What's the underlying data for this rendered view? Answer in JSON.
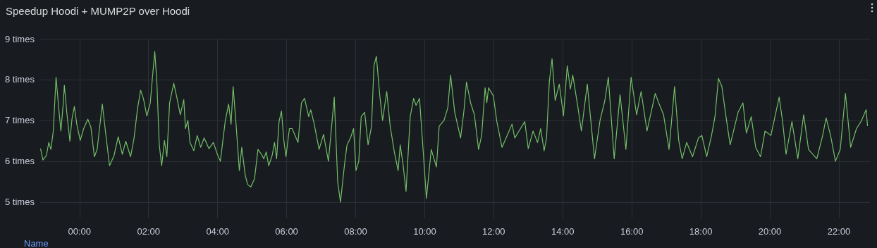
{
  "chart_data": {
    "type": "line",
    "title": "Speedup Hoodi + MUMP2P over Hoodi",
    "legend_title": "Name",
    "grid": true,
    "xlim": [
      -1.14,
      22.9
    ],
    "xticks": [
      {
        "value": 0,
        "label": "00:00"
      },
      {
        "value": 2,
        "label": "02:00"
      },
      {
        "value": 4,
        "label": "04:00"
      },
      {
        "value": 6,
        "label": "06:00"
      },
      {
        "value": 8,
        "label": "08:00"
      },
      {
        "value": 10,
        "label": "10:00"
      },
      {
        "value": 12,
        "label": "12:00"
      },
      {
        "value": 14,
        "label": "14:00"
      },
      {
        "value": 16,
        "label": "16:00"
      },
      {
        "value": 18,
        "label": "18:00"
      },
      {
        "value": 20,
        "label": "20:00"
      },
      {
        "value": 22,
        "label": "22:00"
      }
    ],
    "ylim": [
      4.6,
      9
    ],
    "yticks": [
      {
        "value": 5,
        "label": "5 times"
      },
      {
        "value": 6,
        "label": "6 times"
      },
      {
        "value": 7,
        "label": "7 times"
      },
      {
        "value": 8,
        "label": "8 times"
      },
      {
        "value": 9,
        "label": "9 times"
      }
    ],
    "x": [
      -1.13,
      -1.06,
      -0.96,
      -0.89,
      -0.83,
      -0.76,
      -0.68,
      -0.61,
      -0.54,
      -0.47,
      -0.44,
      -0.37,
      -0.28,
      -0.22,
      -0.15,
      -0.08,
      0.02,
      0.12,
      0.24,
      0.33,
      0.43,
      0.51,
      0.66,
      0.75,
      0.87,
      1.0,
      1.12,
      1.24,
      1.34,
      1.48,
      1.58,
      1.68,
      1.77,
      1.85,
      1.95,
      2.05,
      2.11,
      2.18,
      2.24,
      2.31,
      2.38,
      2.46,
      2.53,
      2.61,
      2.73,
      2.81,
      2.92,
      3.02,
      3.07,
      3.14,
      3.2,
      3.31,
      3.41,
      3.51,
      3.61,
      3.75,
      3.88,
      3.98,
      4.08,
      4.22,
      4.32,
      4.39,
      4.45,
      4.53,
      4.63,
      4.7,
      4.8,
      4.87,
      4.96,
      5.07,
      5.17,
      5.27,
      5.34,
      5.41,
      5.48,
      5.58,
      5.65,
      5.71,
      5.78,
      5.85,
      5.92,
      5.98,
      6.08,
      6.16,
      6.33,
      6.43,
      6.52,
      6.64,
      6.7,
      6.8,
      6.94,
      7.07,
      7.21,
      7.28,
      7.38,
      7.48,
      7.56,
      7.68,
      7.75,
      7.85,
      7.94,
      8.01,
      8.09,
      8.16,
      8.26,
      8.36,
      8.46,
      8.53,
      8.6,
      8.7,
      8.78,
      8.9,
      9.0,
      9.12,
      9.23,
      9.29,
      9.37,
      9.46,
      9.58,
      9.68,
      9.75,
      9.85,
      9.93,
      10.05,
      10.19,
      10.34,
      10.42,
      10.56,
      10.67,
      10.75,
      10.87,
      11.04,
      11.14,
      11.21,
      11.33,
      11.44,
      11.56,
      11.65,
      11.75,
      11.8,
      11.85,
      11.99,
      12.09,
      12.24,
      12.39,
      12.53,
      12.61,
      12.73,
      12.9,
      13.0,
      13.14,
      13.27,
      13.36,
      13.46,
      13.53,
      13.61,
      13.69,
      13.78,
      13.9,
      14.02,
      14.13,
      14.22,
      14.29,
      14.43,
      14.54,
      14.71,
      14.92,
      15.08,
      15.22,
      15.32,
      15.49,
      15.66,
      15.83,
      15.98,
      16.14,
      16.27,
      16.44,
      16.68,
      16.78,
      16.92,
      17.08,
      17.24,
      17.36,
      17.46,
      17.59,
      17.76,
      17.93,
      18.03,
      18.17,
      18.31,
      18.41,
      18.51,
      18.61,
      18.75,
      18.85,
      19.08,
      19.22,
      19.32,
      19.46,
      19.59,
      19.73,
      19.86,
      20.03,
      20.27,
      20.37,
      20.47,
      20.64,
      20.81,
      20.98,
      21.12,
      21.36,
      21.53,
      21.63,
      21.76,
      21.9,
      22.04,
      22.19,
      22.34,
      22.51,
      22.64,
      22.79,
      22.83
    ],
    "series": [
      {
        "color": "#73bf69",
        "values": [
          6.31,
          6.03,
          6.14,
          6.46,
          6.29,
          6.74,
          8.06,
          7.37,
          6.74,
          7.43,
          7.86,
          7.2,
          6.49,
          7.03,
          7.34,
          6.91,
          6.51,
          6.8,
          7.03,
          6.83,
          6.11,
          6.29,
          7.4,
          6.74,
          5.89,
          6.14,
          6.6,
          6.17,
          6.49,
          6.11,
          6.57,
          7.29,
          7.74,
          7.54,
          7.11,
          7.43,
          8.03,
          8.69,
          7.94,
          6.4,
          5.89,
          6.51,
          6.11,
          7.43,
          7.91,
          7.6,
          7.14,
          7.51,
          6.8,
          7.0,
          6.46,
          6.26,
          6.63,
          6.34,
          6.57,
          6.31,
          6.46,
          6.2,
          6.0,
          6.97,
          7.4,
          6.91,
          7.83,
          6.97,
          5.77,
          6.34,
          5.66,
          5.43,
          5.37,
          5.57,
          6.29,
          6.17,
          6.06,
          6.23,
          5.89,
          6.14,
          6.46,
          6.06,
          6.97,
          7.23,
          6.51,
          6.11,
          6.8,
          6.8,
          6.46,
          7.43,
          7.54,
          7.09,
          7.26,
          6.91,
          6.29,
          6.66,
          6.0,
          6.63,
          7.57,
          5.49,
          5.0,
          5.94,
          6.4,
          6.57,
          6.8,
          5.77,
          6.0,
          7.09,
          7.2,
          6.4,
          6.86,
          8.34,
          8.57,
          7.6,
          7.0,
          7.71,
          6.86,
          6.23,
          5.77,
          6.4,
          5.94,
          5.26,
          7.09,
          7.54,
          7.37,
          7.54,
          6.57,
          5.09,
          6.29,
          5.86,
          6.86,
          7.0,
          7.31,
          8.11,
          7.2,
          6.57,
          7.26,
          7.94,
          7.43,
          7.14,
          6.29,
          6.63,
          7.8,
          7.43,
          7.8,
          7.6,
          6.97,
          6.34,
          6.63,
          6.91,
          6.57,
          6.74,
          6.97,
          6.31,
          6.74,
          6.46,
          6.8,
          6.26,
          6.57,
          7.94,
          8.51,
          7.49,
          7.89,
          7.11,
          8.34,
          7.77,
          8.11,
          7.37,
          6.74,
          7.89,
          6.06,
          7.0,
          7.49,
          8.06,
          6.06,
          7.63,
          6.29,
          8.06,
          7.14,
          7.71,
          6.74,
          7.66,
          7.43,
          7.14,
          6.29,
          7.83,
          6.51,
          6.06,
          6.46,
          6.11,
          6.57,
          6.63,
          6.11,
          6.63,
          7.09,
          8.03,
          7.83,
          6.97,
          6.4,
          7.2,
          7.43,
          6.69,
          7.09,
          6.34,
          6.11,
          6.74,
          6.63,
          7.57,
          6.97,
          6.17,
          6.97,
          6.06,
          7.14,
          6.29,
          6.06,
          6.63,
          7.06,
          6.63,
          6.0,
          6.29,
          7.66,
          6.34,
          6.8,
          6.97,
          7.26,
          6.86
        ]
      }
    ]
  }
}
